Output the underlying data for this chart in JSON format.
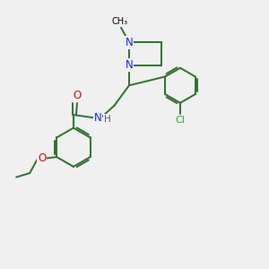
{
  "bg_color": "#f0f0f0",
  "bond_color": "#2d6e2d",
  "n_color": "#1a1aff",
  "o_color": "#dd0000",
  "cl_color": "#2d9b2d",
  "h_color": "#555555",
  "figsize": [
    3.0,
    3.0
  ],
  "dpi": 100,
  "xlim": [
    0,
    10
  ],
  "ylim": [
    0,
    10
  ]
}
